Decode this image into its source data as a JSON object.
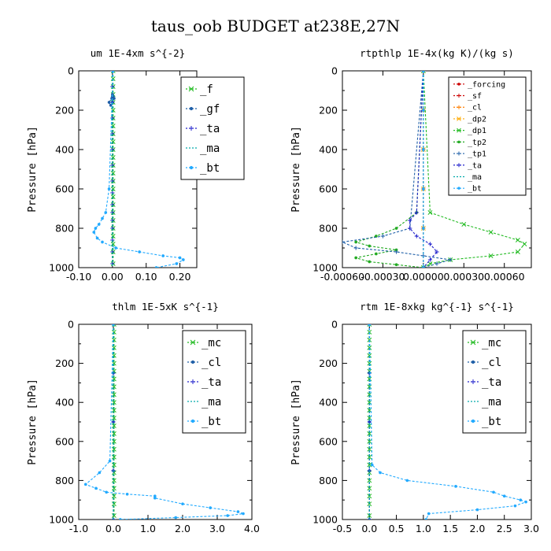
{
  "title": "taus_oob  BUDGET at238E,27N",
  "chart_data": [
    {
      "type": "line",
      "title": "um  1E-4xm s^{-2}",
      "ylabel": "Pressure [hPa]",
      "xlim": [
        -0.1,
        0.25
      ],
      "ylim": [
        0,
        1000
      ],
      "y_inverted": true,
      "xticks": [
        "-0.10",
        "0.00",
        "0.10",
        "0.20"
      ],
      "yticks": [
        "0",
        "200",
        "400",
        "600",
        "800",
        "1000"
      ],
      "legend_position": "top-right",
      "series": [
        {
          "name": "_f",
          "color": "#22bb22",
          "marker": "x",
          "x": [
            0.002,
            0.002,
            0.002,
            0.002,
            0.002,
            0.002,
            0.002,
            0.002,
            0.002,
            0.002,
            0.002,
            0.002,
            0.002,
            0.002,
            0.002,
            0.002,
            0.002,
            0.002,
            0.002,
            0.002,
            0.002,
            0.002,
            0.002,
            0.002,
            0.002
          ],
          "y": [
            0,
            40,
            80,
            120,
            160,
            200,
            240,
            280,
            320,
            360,
            400,
            440,
            480,
            520,
            560,
            600,
            640,
            680,
            720,
            760,
            800,
            840,
            880,
            920,
            980
          ]
        },
        {
          "name": "_gf",
          "color": "#1f5fa8",
          "marker": "dot",
          "x": [
            0,
            -0.002,
            -0.01,
            -0.005,
            0,
            0.005,
            0.002,
            0
          ],
          "y": [
            130,
            140,
            160,
            175,
            160,
            140,
            130,
            120
          ]
        },
        {
          "name": "_ta",
          "color": "#2222cc",
          "marker": "+",
          "x": [
            0,
            0,
            0,
            0,
            0,
            0,
            0,
            0,
            0,
            0,
            0,
            0,
            0,
            0,
            0,
            0
          ],
          "y": [
            0,
            80,
            160,
            240,
            320,
            400,
            480,
            560,
            620,
            680,
            720,
            760,
            800,
            860,
            920,
            980
          ]
        },
        {
          "name": "_ma",
          "color": "#00aaaa",
          "marker": "-",
          "x": [
            0,
            0,
            0,
            0,
            0,
            0
          ],
          "y": [
            0,
            200,
            400,
            600,
            800,
            1000
          ]
        },
        {
          "name": "_bt",
          "color": "#22aaff",
          "marker": "dot",
          "x": [
            0.002,
            -0.01,
            -0.02,
            -0.03,
            -0.04,
            -0.05,
            -0.055,
            -0.045,
            -0.03,
            0.01,
            0.08,
            0.15,
            0.2,
            0.21,
            0.19,
            0.13
          ],
          "y": [
            0,
            600,
            720,
            750,
            780,
            800,
            820,
            850,
            870,
            900,
            920,
            940,
            950,
            960,
            980,
            1000
          ]
        }
      ]
    },
    {
      "type": "line",
      "title": "rtpthlp  1E-4x(kg K)/(kg s)",
      "ylabel": "Pressure [hPa]",
      "xlim": [
        -0.0006,
        0.0008
      ],
      "ylim": [
        0,
        1000
      ],
      "y_inverted": true,
      "xticks": [
        "-0.00060",
        "-0.00030",
        "0.00000",
        "0.00030",
        "0.00060"
      ],
      "yticks": [
        "0",
        "200",
        "400",
        "600",
        "800",
        "1000"
      ],
      "legend_position": "top-right",
      "series": [
        {
          "name": "_forcing",
          "color": "#cc0000",
          "marker": "dot",
          "x": [
            0,
            0,
            0,
            0,
            0,
            0
          ],
          "y": [
            0,
            200,
            400,
            600,
            800,
            1000
          ]
        },
        {
          "name": "_sf",
          "color": "#cc0000",
          "marker": "+",
          "x": [
            0,
            0,
            0,
            0,
            0,
            0
          ],
          "y": [
            0,
            200,
            400,
            600,
            800,
            1000
          ]
        },
        {
          "name": "_cl",
          "color": "#ff7f00",
          "marker": "+",
          "x": [
            0,
            0,
            0,
            0,
            0,
            0
          ],
          "y": [
            0,
            200,
            400,
            600,
            800,
            1000
          ]
        },
        {
          "name": "_dp2",
          "color": "#ffaa00",
          "marker": "x",
          "x": [
            0,
            0,
            0,
            0,
            0,
            0
          ],
          "y": [
            0,
            200,
            400,
            600,
            800,
            1000
          ]
        },
        {
          "name": "_dp1",
          "color": "#22bb22",
          "marker": "x",
          "x": [
            0,
            5e-05,
            0.0003,
            0.0005,
            0.0007,
            0.00075,
            0.0007,
            0.0005,
            0.0002,
            5e-05,
            0
          ],
          "y": [
            0,
            720,
            780,
            820,
            860,
            880,
            920,
            940,
            960,
            980,
            1000
          ]
        },
        {
          "name": "_tp2",
          "color": "#22aa22",
          "marker": "dot",
          "x": [
            0,
            -5e-05,
            -0.0002,
            -0.00035,
            -0.0005,
            -0.0004,
            -0.0002,
            -0.00035,
            -0.0005,
            -0.0004,
            -0.0002,
            0
          ],
          "y": [
            0,
            720,
            800,
            840,
            870,
            890,
            910,
            930,
            950,
            970,
            985,
            1000
          ]
        },
        {
          "name": "_tp1",
          "color": "#1f5fa8",
          "marker": "+",
          "x": [
            0,
            -0.0001,
            -0.0003,
            -0.0006,
            -0.0005,
            -0.0002,
            0,
            0.0002,
            0.0001,
            0
          ],
          "y": [
            0,
            800,
            840,
            870,
            900,
            920,
            940,
            960,
            980,
            1000
          ]
        },
        {
          "name": "_ta",
          "color": "#2222cc",
          "marker": "+",
          "x": [
            0,
            -5e-05,
            -0.0001,
            -0.0001,
            -5e-05,
            5e-05,
            0.0001,
            5e-05,
            0
          ],
          "y": [
            0,
            720,
            760,
            800,
            840,
            880,
            920,
            960,
            1000
          ]
        },
        {
          "name": "_ma",
          "color": "#00aaaa",
          "marker": "-",
          "x": [
            0,
            0,
            0,
            0,
            0,
            0
          ],
          "y": [
            0,
            200,
            400,
            600,
            800,
            1000
          ]
        },
        {
          "name": "_bt",
          "color": "#22aaff",
          "marker": "dot",
          "x": [
            0,
            0,
            0,
            0,
            0,
            0
          ],
          "y": [
            0,
            200,
            400,
            600,
            800,
            1000
          ]
        }
      ]
    },
    {
      "type": "line",
      "title": "thlm  1E-5xK s^{-1}",
      "ylabel": "Pressure [hPa]",
      "xlim": [
        -1.0,
        4.0
      ],
      "ylim": [
        0,
        1000
      ],
      "y_inverted": true,
      "xticks": [
        "-1.0",
        "0.0",
        "1.0",
        "2.0",
        "3.0",
        "4.0"
      ],
      "yticks": [
        "0",
        "200",
        "400",
        "600",
        "800",
        "1000"
      ],
      "legend_position": "top-right",
      "series": [
        {
          "name": "_mc",
          "color": "#22bb22",
          "marker": "x",
          "x": [
            0.02,
            0.02,
            0.02,
            0.02,
            0.02,
            0.02,
            0.02,
            0.02,
            0.02,
            0.02,
            0.02,
            0.02,
            0.02,
            0.02,
            0.02,
            0.02,
            0.02,
            0.02,
            0.02,
            0.02,
            0.02,
            0.02,
            0.02,
            0.02,
            0.02
          ],
          "y": [
            0,
            40,
            80,
            120,
            160,
            200,
            240,
            280,
            320,
            360,
            400,
            440,
            480,
            520,
            560,
            600,
            640,
            680,
            720,
            760,
            800,
            840,
            880,
            920,
            980
          ]
        },
        {
          "name": "_cl",
          "color": "#1f5fa8",
          "marker": "dot",
          "x": [
            0,
            0,
            0,
            0,
            0
          ],
          "y": [
            0,
            250,
            500,
            750,
            1000
          ]
        },
        {
          "name": "_ta",
          "color": "#2222cc",
          "marker": "+",
          "x": [
            0,
            0,
            0,
            0,
            0
          ],
          "y": [
            0,
            250,
            500,
            750,
            1000
          ]
        },
        {
          "name": "_ma",
          "color": "#00aaaa",
          "marker": "-",
          "x": [
            0,
            0,
            0,
            0,
            0
          ],
          "y": [
            0,
            250,
            500,
            750,
            1000
          ]
        },
        {
          "name": "_bt",
          "color": "#22aaff",
          "marker": "dot",
          "x": [
            0,
            -0.1,
            -0.4,
            -0.8,
            -0.5,
            -0.2,
            0.4,
            1.2,
            1.2,
            2.0,
            2.8,
            3.6,
            3.75,
            3.3,
            1.8,
            0.2
          ],
          "y": [
            0,
            700,
            760,
            820,
            840,
            860,
            870,
            880,
            890,
            920,
            940,
            960,
            970,
            980,
            990,
            1000
          ]
        }
      ]
    },
    {
      "type": "line",
      "title": "rtm  1E-8xkg kg^{-1} s^{-1}",
      "ylabel": "Pressure [hPa]",
      "xlim": [
        -0.5,
        3.0
      ],
      "ylim": [
        0,
        1000
      ],
      "y_inverted": true,
      "xticks": [
        "-0.5",
        "0.0",
        "0.5",
        "1.0",
        "1.5",
        "2.0",
        "2.5",
        "3.0"
      ],
      "yticks": [
        "0",
        "200",
        "400",
        "600",
        "800",
        "1000"
      ],
      "legend_position": "top-right",
      "series": [
        {
          "name": "_mc",
          "color": "#22bb22",
          "marker": "x",
          "x": [
            0,
            0,
            0,
            0,
            0,
            0,
            0,
            0,
            0,
            0,
            0,
            0,
            0,
            0,
            0,
            0,
            0,
            0,
            0,
            0,
            0,
            0,
            0,
            0,
            0
          ],
          "y": [
            0,
            40,
            80,
            120,
            160,
            200,
            240,
            280,
            320,
            360,
            400,
            440,
            480,
            520,
            560,
            600,
            640,
            680,
            720,
            760,
            800,
            840,
            880,
            920,
            980
          ]
        },
        {
          "name": "_cl",
          "color": "#1f5fa8",
          "marker": "dot",
          "x": [
            0,
            0,
            0,
            0,
            0
          ],
          "y": [
            0,
            250,
            500,
            750,
            1000
          ]
        },
        {
          "name": "_ta",
          "color": "#2222cc",
          "marker": "+",
          "x": [
            0,
            0,
            0,
            0,
            0
          ],
          "y": [
            0,
            250,
            500,
            750,
            1000
          ]
        },
        {
          "name": "_ma",
          "color": "#00aaaa",
          "marker": "-",
          "x": [
            0,
            0,
            0,
            0,
            0
          ],
          "y": [
            0,
            250,
            500,
            750,
            1000
          ]
        },
        {
          "name": "_bt",
          "color": "#22aaff",
          "marker": "dot",
          "x": [
            0,
            0.05,
            0.2,
            0.7,
            1.6,
            2.3,
            2.5,
            2.8,
            2.9,
            2.7,
            2.0,
            1.1,
            1.05
          ],
          "y": [
            0,
            720,
            760,
            800,
            830,
            860,
            880,
            900,
            910,
            930,
            950,
            970,
            1000
          ]
        }
      ]
    }
  ]
}
